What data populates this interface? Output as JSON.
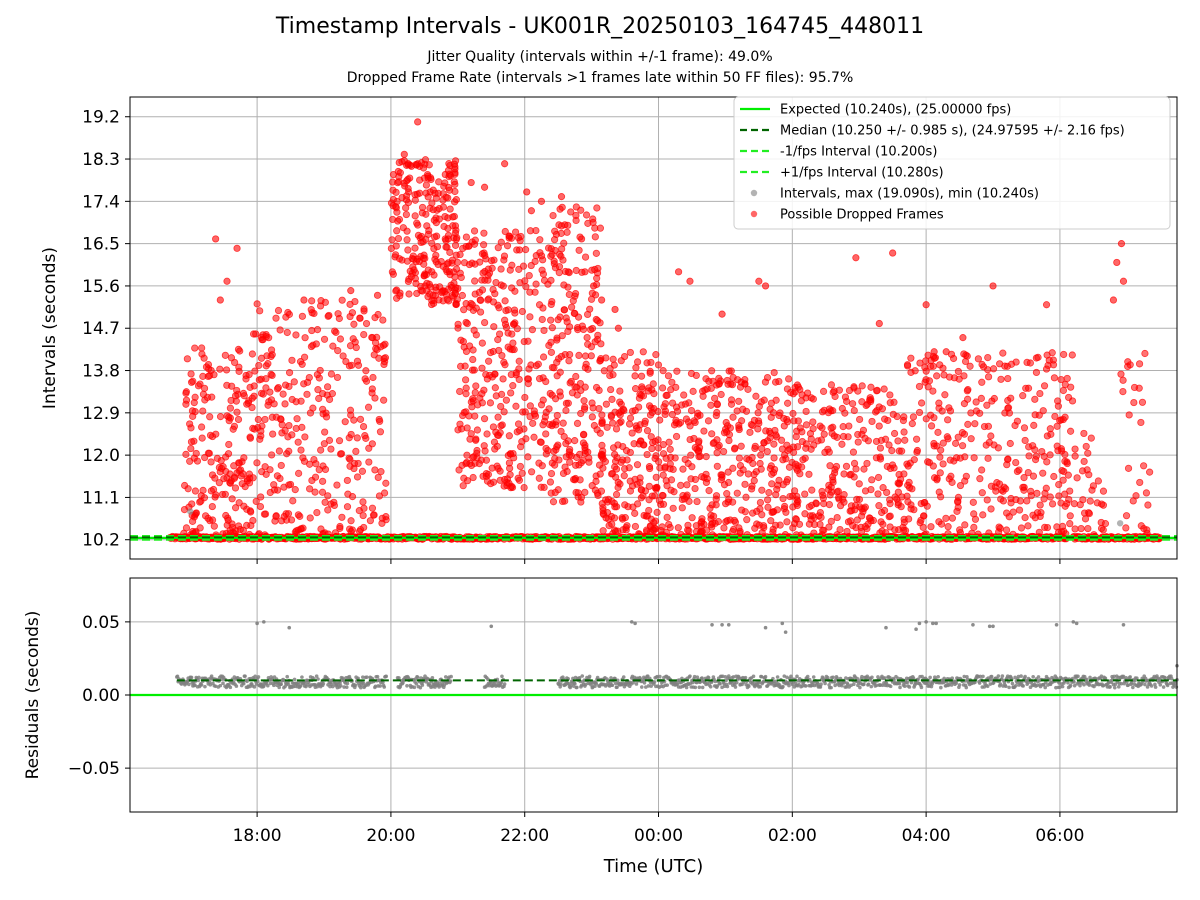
{
  "figure": {
    "title": "Timestamp Intervals - UK001R_20250103_164745_448011",
    "subtitle_1": "Jitter Quality (intervals within +/-1 frame): 49.0%",
    "subtitle_2": "Dropped Frame Rate (intervals >1 frames late within 50 FF files): 95.7%"
  },
  "colors": {
    "expected": "#00ee00",
    "median": "#006400",
    "fps_interval": "#22ee22",
    "intervals": "#808080",
    "dropped": "#ff0000",
    "grid": "#b0b0b0"
  },
  "chart_data": [
    {
      "type": "scatter",
      "panel": "intervals",
      "xlabel": "",
      "ylabel": "Intervals (seconds)",
      "x_unit": "hours since 00:00 UTC (Jan 3 evening negative)",
      "xlim": [
        -7.9,
        7.75
      ],
      "ylim": [
        9.79,
        19.62
      ],
      "yticks": [
        10.2,
        11.1,
        12.0,
        12.9,
        13.8,
        14.7,
        15.6,
        16.5,
        17.4,
        18.3,
        19.2
      ],
      "yticklabels": [
        "10.2",
        "11.1",
        "12.0",
        "12.9",
        "13.8",
        "14.7",
        "15.6",
        "16.5",
        "17.4",
        "18.3",
        "19.2"
      ],
      "grid": true,
      "legend_position": "top-right",
      "legend": [
        {
          "label": "Expected (10.240s), (25.00000 fps)",
          "style": "solid",
          "color": "#00ee00"
        },
        {
          "label": "Median (10.250 +/- 0.985 s), (24.97595 +/- 2.16 fps)",
          "style": "dashed",
          "color": "#006400"
        },
        {
          "label": "-1/fps Interval (10.200s)",
          "style": "dashed",
          "color": "#22ee22"
        },
        {
          "label": "+1/fps Interval (10.280s)",
          "style": "dashed",
          "color": "#22ee22"
        },
        {
          "label": "Intervals, max (19.090s), min (10.240s)",
          "style": "marker",
          "color": "#808080"
        },
        {
          "label": "Possible Dropped Frames",
          "style": "marker",
          "color": "#ff0000"
        }
      ],
      "reference_lines": {
        "expected": 10.24,
        "median": 10.25,
        "minus_one_frame": 10.2,
        "plus_one_frame": 10.28
      },
      "stats": {
        "max": 19.09,
        "min": 10.24
      },
      "active_ranges_hours": [
        [
          -7.3,
          -4.0
        ],
        [
          -4.0,
          -2.1
        ],
        [
          -2.1,
          0.0
        ],
        [
          0.0,
          2.0
        ],
        [
          2.0,
          6.1
        ],
        [
          6.2,
          7.5
        ]
      ],
      "density_profile": [
        {
          "start": -7.1,
          "end": -6.1,
          "y_low": 10.3,
          "y_high": 14.3,
          "count": 190
        },
        {
          "start": -6.1,
          "end": -4.05,
          "y_low": 10.3,
          "y_high": 15.3,
          "count": 330
        },
        {
          "start": -4.0,
          "end": -3.0,
          "y_low": 15.2,
          "y_high": 18.3,
          "count": 260
        },
        {
          "start": -3.0,
          "end": -1.65,
          "y_low": 11.3,
          "y_high": 16.8,
          "count": 330
        },
        {
          "start": -1.65,
          "end": -0.85,
          "y_low": 11.0,
          "y_high": 17.3,
          "count": 230
        },
        {
          "start": -0.85,
          "end": 0.0,
          "y_low": 10.3,
          "y_high": 14.2,
          "count": 200
        },
        {
          "start": 0.0,
          "end": 2.0,
          "y_low": 10.3,
          "y_high": 13.8,
          "count": 360
        },
        {
          "start": 2.0,
          "end": 3.7,
          "y_low": 10.3,
          "y_high": 13.5,
          "count": 280
        },
        {
          "start": 3.7,
          "end": 6.25,
          "y_low": 10.3,
          "y_high": 14.2,
          "count": 340
        },
        {
          "start": 6.25,
          "end": 6.7,
          "y_low": 10.3,
          "y_high": 12.6,
          "count": 30
        },
        {
          "start": 6.9,
          "end": 7.35,
          "y_low": 10.3,
          "y_high": 14.2,
          "count": 28
        }
      ],
      "outliers": [
        [
          -6.62,
          16.6
        ],
        [
          -6.3,
          16.4
        ],
        [
          -6.45,
          15.7
        ],
        [
          -6.55,
          15.3
        ],
        [
          -5.3,
          15.3
        ],
        [
          -4.6,
          15.5
        ],
        [
          -4.2,
          15.4
        ],
        [
          -3.8,
          18.4
        ],
        [
          -3.6,
          18.2
        ],
        [
          -3.6,
          19.09
        ],
        [
          -2.8,
          17.8
        ],
        [
          -2.3,
          18.2
        ],
        [
          -2.6,
          17.7
        ],
        [
          -1.97,
          17.6
        ],
        [
          -1.9,
          17.2
        ],
        [
          -1.75,
          17.4
        ],
        [
          -1.45,
          17.5
        ],
        [
          -1.4,
          16.9
        ],
        [
          -1.15,
          16.6
        ],
        [
          -1.1,
          15.9
        ],
        [
          -0.97,
          15.6
        ],
        [
          -0.85,
          15.3
        ],
        [
          -0.65,
          15.1
        ],
        [
          -0.6,
          14.7
        ],
        [
          0.3,
          15.9
        ],
        [
          0.47,
          15.7
        ],
        [
          0.95,
          15.0
        ],
        [
          1.5,
          15.7
        ],
        [
          1.6,
          15.6
        ],
        [
          2.95,
          16.2
        ],
        [
          3.3,
          14.8
        ],
        [
          3.5,
          16.3
        ],
        [
          4.0,
          15.2
        ],
        [
          4.55,
          14.5
        ],
        [
          5.0,
          15.6
        ],
        [
          5.8,
          15.2
        ],
        [
          6.8,
          15.3
        ],
        [
          6.85,
          16.1
        ],
        [
          6.92,
          16.5
        ],
        [
          6.95,
          15.7
        ],
        [
          4.12,
          14.2
        ],
        [
          4.3,
          14.2
        ]
      ],
      "gray_points": [
        [
          -7.0,
          10.8
        ],
        [
          6.9,
          10.55
        ]
      ]
    },
    {
      "type": "scatter",
      "panel": "residuals",
      "xlabel": "Time (UTC)",
      "ylabel": "Residuals (seconds)",
      "xlim": [
        -7.9,
        7.75
      ],
      "ylim": [
        -0.08,
        0.08
      ],
      "xticks": [
        -6,
        -4,
        -2,
        0,
        2,
        4,
        6
      ],
      "xticklabels": [
        "18:00",
        "20:00",
        "22:00",
        "00:00",
        "02:00",
        "04:00",
        "06:00"
      ],
      "yticks": [
        0.05,
        0.0,
        -0.05
      ],
      "yticklabels": [
        "0.05",
        "0.00",
        "−0.05"
      ],
      "grid": true,
      "reference_lines": {
        "expected": 0.0,
        "median": 0.01
      },
      "band": {
        "center": 0.009,
        "spread": 0.004
      },
      "sparse_points": [
        [
          -6.0,
          0.049
        ],
        [
          -5.9,
          0.05
        ],
        [
          -5.52,
          0.046
        ],
        [
          -2.5,
          0.047
        ],
        [
          -0.4,
          0.05
        ],
        [
          -0.35,
          0.049
        ],
        [
          0.8,
          0.048
        ],
        [
          0.95,
          0.048
        ],
        [
          1.05,
          0.048
        ],
        [
          1.6,
          0.046
        ],
        [
          1.85,
          0.049
        ],
        [
          1.9,
          0.043
        ],
        [
          3.4,
          0.046
        ],
        [
          3.85,
          0.045
        ],
        [
          3.9,
          0.049
        ],
        [
          4.0,
          0.05
        ],
        [
          4.1,
          0.049
        ],
        [
          4.15,
          0.049
        ],
        [
          4.7,
          0.048
        ],
        [
          4.95,
          0.047
        ],
        [
          5.0,
          0.047
        ],
        [
          5.95,
          0.048
        ],
        [
          6.2,
          0.05
        ],
        [
          6.25,
          0.049
        ],
        [
          6.95,
          0.048
        ],
        [
          7.75,
          0.02
        ]
      ],
      "gaps_hours": [
        [
          -4.07,
          -4.0
        ],
        [
          -3.0,
          -2.6
        ],
        [
          -2.3,
          -1.5
        ]
      ]
    }
  ]
}
